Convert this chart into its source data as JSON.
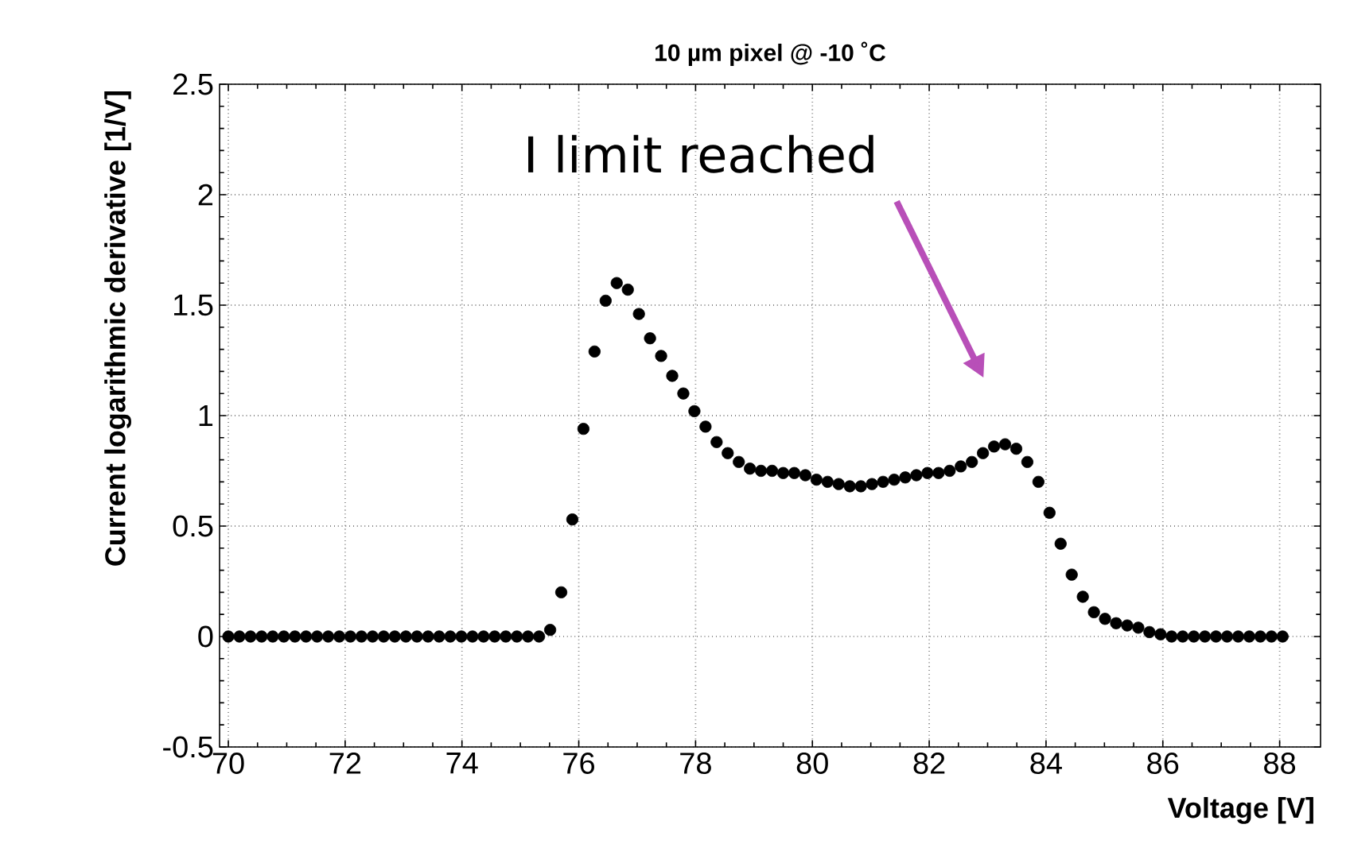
{
  "chart_data": {
    "type": "scatter",
    "title": "10 µm pixel @ -10 ˚C",
    "xlabel": "Voltage [V]",
    "ylabel": "Current logarithmic derivative [1/V]",
    "annotations": [
      "I limit reached"
    ],
    "x": [
      70.0,
      70.19,
      70.38,
      70.57,
      70.76,
      70.95,
      71.14,
      71.33,
      71.52,
      71.71,
      71.9,
      72.09,
      72.28,
      72.47,
      72.66,
      72.85,
      73.04,
      73.23,
      73.42,
      73.61,
      73.8,
      73.99,
      74.18,
      74.37,
      74.56,
      74.75,
      74.94,
      75.13,
      75.32,
      75.51,
      75.7,
      75.89,
      76.08,
      76.27,
      76.46,
      76.65,
      76.84,
      77.03,
      77.22,
      77.41,
      77.6,
      77.79,
      77.98,
      78.17,
      78.36,
      78.55,
      78.74,
      78.93,
      79.12,
      79.31,
      79.5,
      79.69,
      79.88,
      80.07,
      80.26,
      80.45,
      80.64,
      80.83,
      81.02,
      81.21,
      81.4,
      81.59,
      81.78,
      81.97,
      82.16,
      82.35,
      82.54,
      82.73,
      82.92,
      83.11,
      83.3,
      83.49,
      83.68,
      83.87,
      84.06,
      84.25,
      84.44,
      84.63,
      84.82,
      85.01,
      85.2,
      85.39,
      85.58,
      85.77,
      85.96,
      86.15,
      86.34,
      86.53,
      86.72,
      86.91,
      87.1,
      87.29,
      87.48,
      87.67,
      87.86,
      88.05
    ],
    "series": [
      {
        "color": "#000000",
        "values": [
          0,
          0,
          0,
          0,
          0,
          0,
          0,
          0,
          0,
          0,
          0,
          0,
          0,
          0,
          0,
          0,
          0,
          0,
          0,
          0,
          0,
          0,
          0,
          0,
          0,
          0,
          0,
          0,
          0,
          0.03,
          0.2,
          0.53,
          0.94,
          1.29,
          1.52,
          1.6,
          1.57,
          1.46,
          1.35,
          1.27,
          1.18,
          1.1,
          1.02,
          0.95,
          0.88,
          0.83,
          0.79,
          0.76,
          0.75,
          0.75,
          0.74,
          0.74,
          0.73,
          0.71,
          0.7,
          0.69,
          0.68,
          0.68,
          0.69,
          0.7,
          0.71,
          0.72,
          0.73,
          0.74,
          0.74,
          0.75,
          0.77,
          0.79,
          0.83,
          0.86,
          0.87,
          0.85,
          0.79,
          0.7,
          0.56,
          0.42,
          0.28,
          0.18,
          0.11,
          0.08,
          0.06,
          0.05,
          0.04,
          0.02,
          0.01,
          0,
          0,
          0,
          0,
          0,
          0,
          0,
          0,
          0,
          0,
          0
        ]
      }
    ],
    "xlim": [
      69.85,
      88.7
    ],
    "xticks": [
      70,
      72,
      74,
      76,
      78,
      80,
      82,
      84,
      86,
      88
    ],
    "ylim": [
      -0.5,
      2.5
    ],
    "yticks": [
      -0.5,
      0,
      0.5,
      1,
      1.5,
      2,
      2.5
    ],
    "grid": true,
    "marker": "circle"
  }
}
